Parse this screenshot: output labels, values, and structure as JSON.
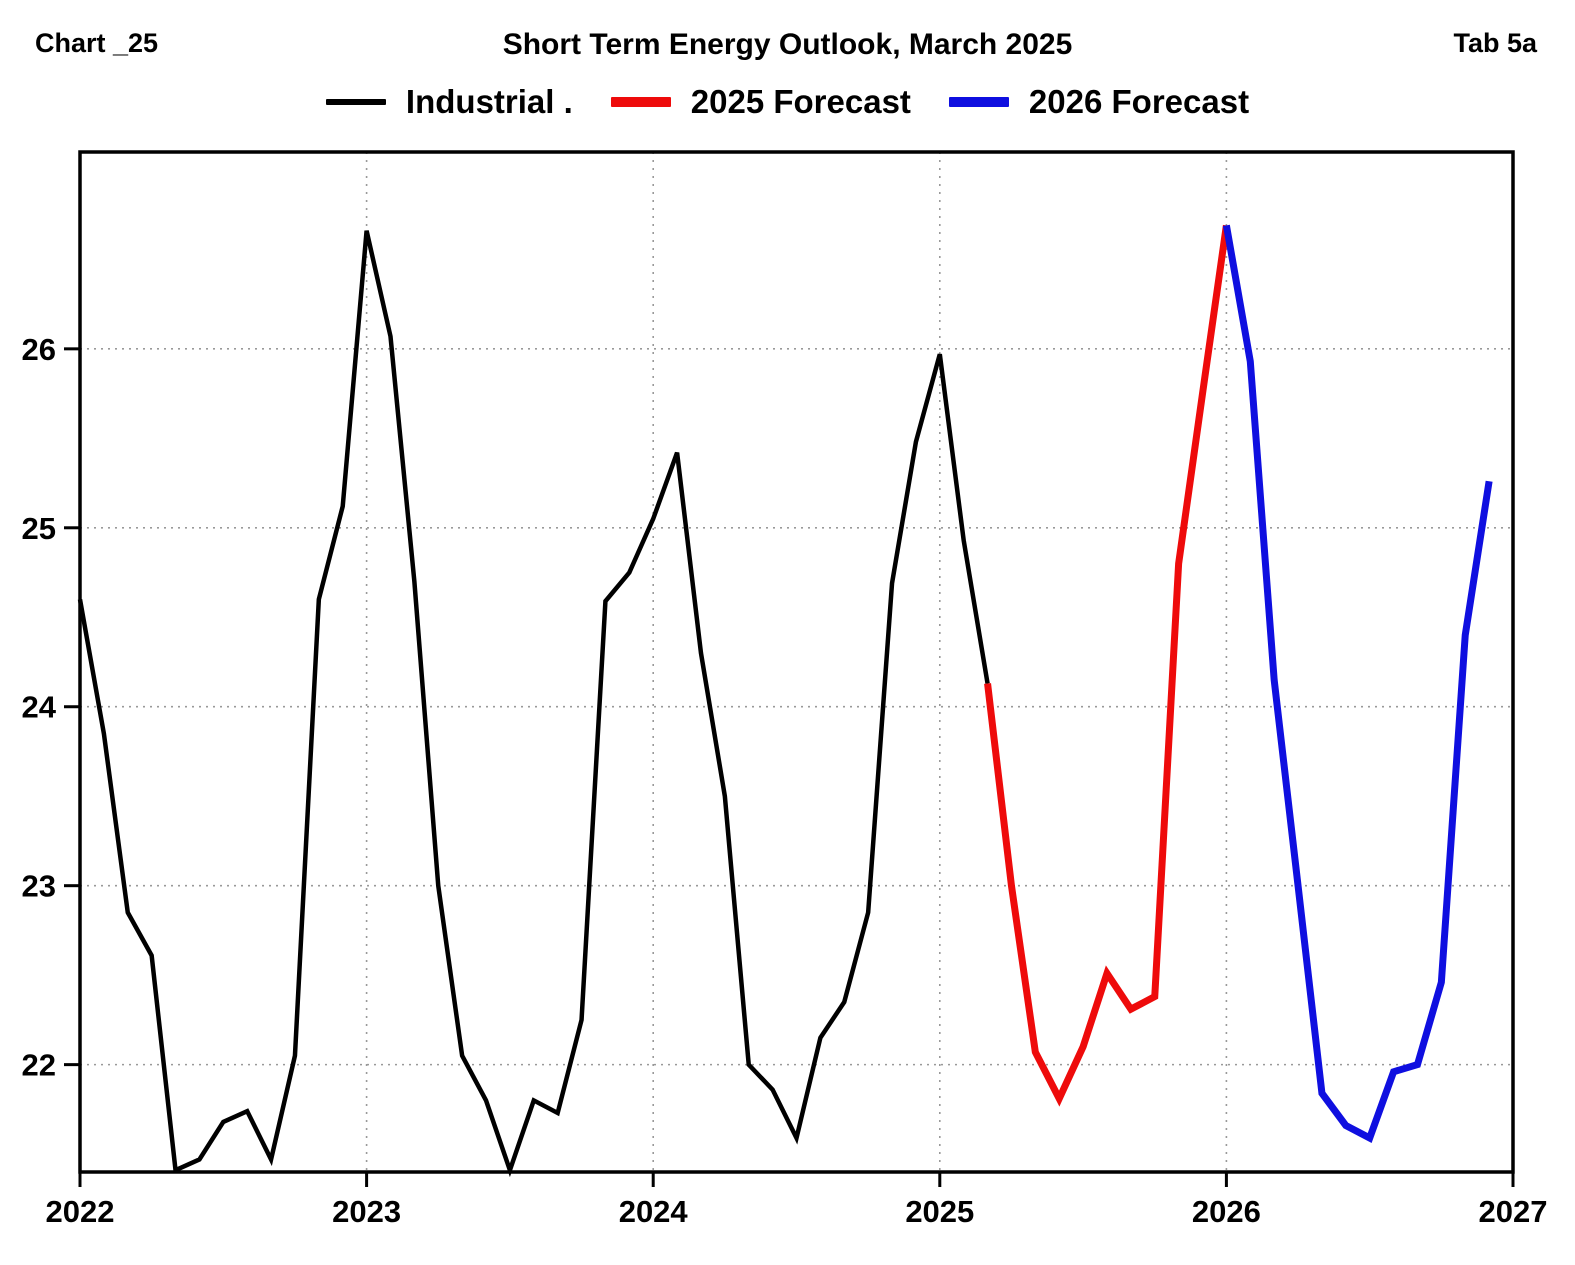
{
  "header": {
    "chart_label": "Chart _25",
    "title": "Short Term Energy Outlook, March 2025",
    "tab_label": "Tab 5a"
  },
  "legend": [
    {
      "label": "Industrial .",
      "color": "#000000"
    },
    {
      "label": "2025 Forecast",
      "color": "#ee0b0b"
    },
    {
      "label": "2026 Forecast",
      "color": "#0f0fe0"
    }
  ],
  "chart_data": {
    "type": "line",
    "title": "Short Term Energy Outlook, March 2025",
    "xlabel": "",
    "ylabel": "",
    "x_axis": {
      "tick_labels": [
        "2022",
        "2023",
        "2024",
        "2025",
        "2026",
        "2027"
      ],
      "unit": "month",
      "start": "2022-01",
      "months_total": 60,
      "grid": "dotted vertical at 2023-2026"
    },
    "y_axis": {
      "ticks": [
        22,
        23,
        24,
        25,
        26
      ],
      "tick_labels": [
        "22",
        "23",
        "24",
        "25",
        "26"
      ],
      "range": [
        21.4,
        27.1
      ],
      "grid": "dotted horizontal"
    },
    "legend_position": "top-center",
    "series": [
      {
        "name": "Industrial .",
        "color": "#000000",
        "line_width": 4.5,
        "start_month_index": 0,
        "period": "Jan 2022 - Mar 2025",
        "values": [
          24.6,
          23.85,
          22.85,
          22.61,
          21.41,
          21.47,
          21.68,
          21.74,
          21.47,
          22.05,
          24.6,
          25.12,
          26.66,
          26.07,
          24.7,
          23.0,
          22.05,
          21.8,
          21.41,
          21.8,
          21.73,
          22.25,
          24.59,
          24.75,
          25.05,
          25.42,
          24.3,
          23.5,
          22.0,
          21.86,
          21.59,
          22.15,
          22.35,
          22.85,
          24.69,
          25.48,
          25.97,
          24.93,
          24.13
        ]
      },
      {
        "name": "2025 Forecast",
        "color": "#ee0b0b",
        "line_width": 7,
        "start_month_index": 38,
        "period": "Mar 2025 - Jan 2026",
        "values": [
          24.13,
          23.0,
          22.07,
          21.81,
          22.1,
          22.51,
          22.31,
          22.38,
          24.8,
          25.75,
          26.69
        ]
      },
      {
        "name": "2026 Forecast",
        "color": "#0f0fe0",
        "line_width": 7,
        "start_month_index": 48,
        "period": "Jan 2026 - Dec 2026",
        "values": [
          26.69,
          25.93,
          24.15,
          23.0,
          21.84,
          21.66,
          21.59,
          21.96,
          22.0,
          22.46,
          24.4,
          25.26
        ]
      }
    ]
  }
}
